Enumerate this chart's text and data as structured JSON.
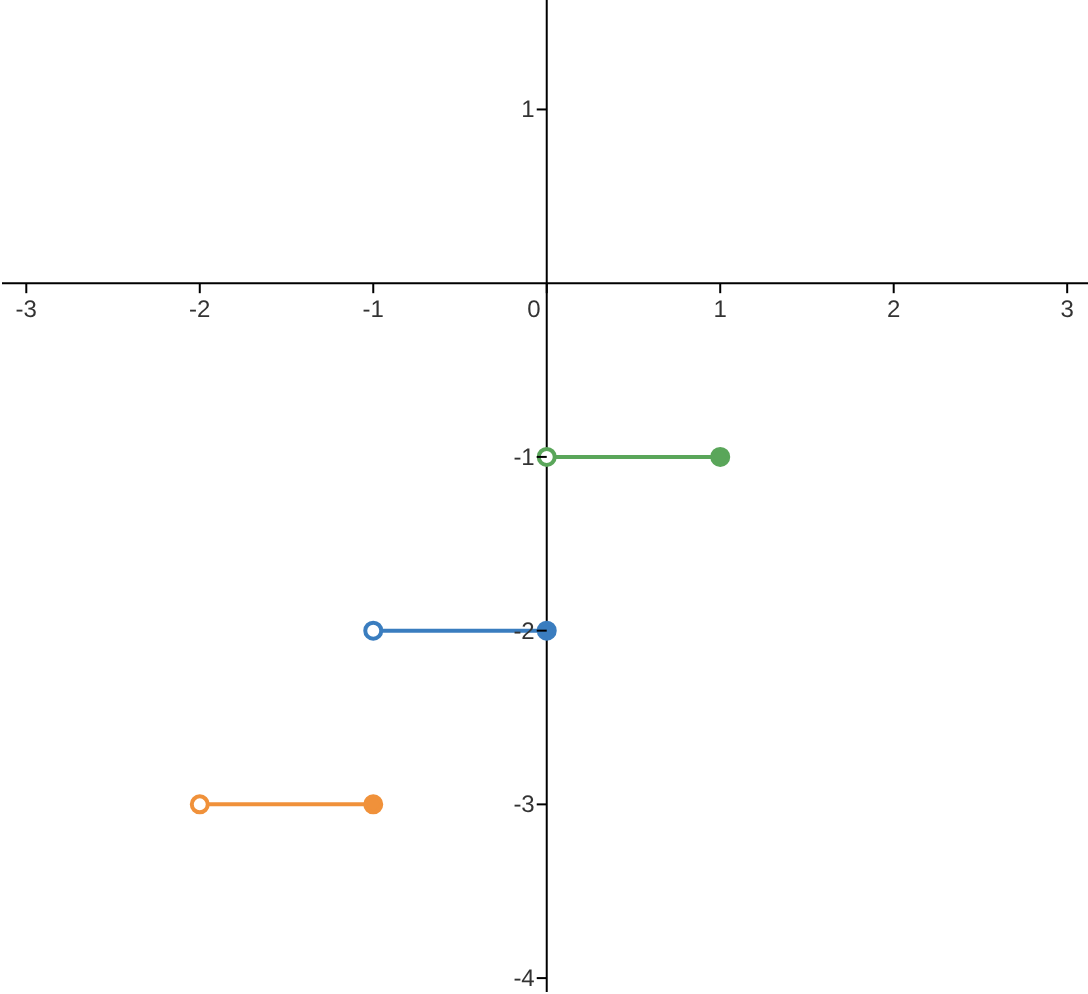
{
  "chart_data": {
    "type": "line",
    "xlim": [
      -3.14,
      3.12
    ],
    "ylim": [
      -4.08,
      1.63
    ],
    "xticks": [
      -3,
      -2,
      -1,
      0,
      1,
      2,
      3
    ],
    "yticks": [
      -4,
      -3,
      -2,
      -1,
      1
    ],
    "grid": false,
    "marker": "circle",
    "line_style": "solid",
    "series": [
      {
        "color": "#f0913a",
        "x": [
          -2,
          -1
        ],
        "values": [
          -3,
          -3
        ]
      },
      {
        "color": "#3a7dbf",
        "x": [
          -1,
          0
        ],
        "values": [
          -2,
          -2
        ]
      },
      {
        "color": "#5aa65a",
        "x": [
          0,
          1
        ],
        "values": [
          -1,
          -1
        ]
      }
    ]
  }
}
